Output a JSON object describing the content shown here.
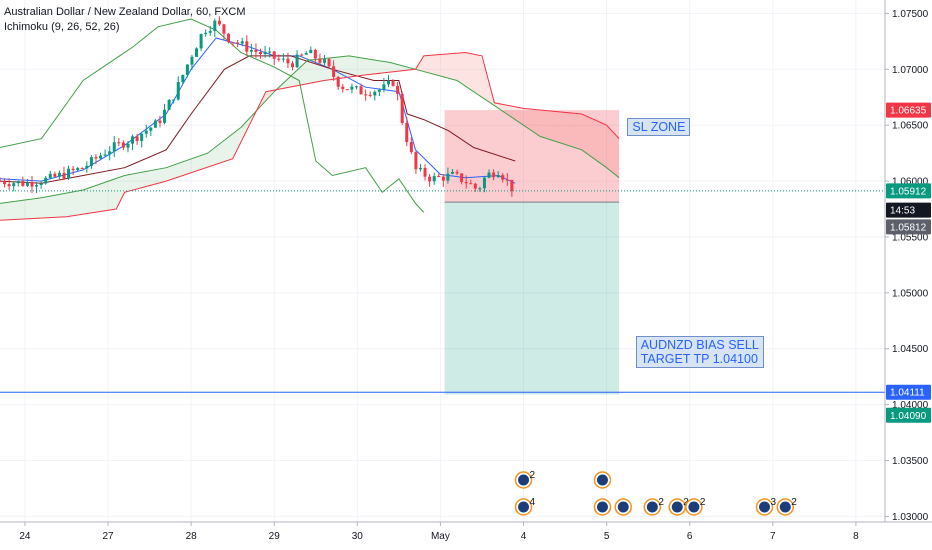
{
  "header": {
    "symbol": "Australian Dollar / New Zealand Dollar, 60, FXCM",
    "indicator": "Ichimoku (9, 26, 52, 26)"
  },
  "chart_data": {
    "type": "candlestick",
    "ylim": [
      1.0295,
      1.0762
    ],
    "y_ticks": [
      "1.07500",
      "1.07000",
      "1.06500",
      "1.06000",
      "1.05500",
      "1.05000",
      "1.04500",
      "1.04000",
      "1.03500",
      "1.03000"
    ],
    "x_ticks": [
      {
        "label": "24",
        "x": 0.3
      },
      {
        "label": "27",
        "x": 1.3
      },
      {
        "label": "28",
        "x": 2.3
      },
      {
        "label": "29",
        "x": 3.3
      },
      {
        "label": "30",
        "x": 4.3
      },
      {
        "label": "May",
        "x": 5.3
      },
      {
        "label": "4",
        "x": 6.3
      },
      {
        "label": "5",
        "x": 7.3
      },
      {
        "label": "6",
        "x": 8.3
      },
      {
        "label": "7",
        "x": 9.3
      },
      {
        "label": "8",
        "x": 10.3
      }
    ],
    "xlim": [
      0,
      10.65
    ],
    "price_tags": [
      {
        "label": "1.06635",
        "value": 1.06635,
        "color": "#f23645"
      },
      {
        "label": "1.05912",
        "value": 1.05912,
        "color": "#089981"
      },
      {
        "label": "14:53",
        "value": 1.0574,
        "color": "#131722"
      },
      {
        "label": "1.05812",
        "value": 1.0559,
        "color": "#5d606b"
      },
      {
        "label": "1.04111",
        "value": 1.04111,
        "color": "#2962ff"
      },
      {
        "label": "1.04090",
        "value": 1.03905,
        "color": "#089981"
      }
    ],
    "horizontal_line": 1.04111,
    "current_price": 1.05912,
    "position": {
      "x_start": 5.35,
      "x_end": 7.45,
      "entry": 1.05812,
      "stop": 1.06635,
      "target": 1.0409
    },
    "annotations": [
      {
        "text": "SL ZONE",
        "x": 7.55,
        "value": 1.0648
      },
      {
        "text": "AUDNZD BIAS SELL",
        "x": 7.65,
        "value": 1.0453
      },
      {
        "text": "TARGET TP 1.04100",
        "x": 7.65,
        "value": 1.0437
      }
    ],
    "close_path": [
      [
        0,
        1.06
      ],
      [
        0.3,
        1.0598
      ],
      [
        0.6,
        1.0602
      ],
      [
        1.0,
        1.0612
      ],
      [
        1.3,
        1.0628
      ],
      [
        1.6,
        1.0638
      ],
      [
        1.9,
        1.0652
      ],
      [
        2.1,
        1.0678
      ],
      [
        2.3,
        1.0712
      ],
      [
        2.45,
        1.0735
      ],
      [
        2.6,
        1.0742
      ],
      [
        2.75,
        1.0728
      ],
      [
        3.0,
        1.0718
      ],
      [
        3.3,
        1.071
      ],
      [
        3.5,
        1.0705
      ],
      [
        3.7,
        1.0715
      ],
      [
        3.9,
        1.0706
      ],
      [
        4.1,
        1.0685
      ],
      [
        4.35,
        1.068
      ],
      [
        4.6,
        1.0682
      ],
      [
        4.75,
        1.069
      ],
      [
        4.85,
        1.065
      ],
      [
        5.0,
        1.061
      ],
      [
        5.2,
        1.0602
      ],
      [
        5.45,
        1.0605
      ],
      [
        5.6,
        1.06
      ],
      [
        5.75,
        1.0592
      ],
      [
        5.85,
        1.0605
      ],
      [
        6.0,
        1.061
      ],
      [
        6.1,
        1.06
      ],
      [
        6.2,
        1.059
      ]
    ],
    "series": [
      {
        "name": "conversion",
        "color": "#2962ff",
        "points": [
          [
            0,
            1.0602
          ],
          [
            0.5,
            1.06
          ],
          [
            1.0,
            1.061
          ],
          [
            1.5,
            1.0632
          ],
          [
            2.0,
            1.066
          ],
          [
            2.3,
            1.07
          ],
          [
            2.6,
            1.0728
          ],
          [
            3.0,
            1.072
          ],
          [
            3.3,
            1.0712
          ],
          [
            3.6,
            1.0712
          ],
          [
            4.0,
            1.07
          ],
          [
            4.4,
            1.0684
          ],
          [
            4.8,
            1.068
          ],
          [
            5.0,
            1.0628
          ],
          [
            5.3,
            1.0606
          ],
          [
            5.6,
            1.0603
          ],
          [
            6.0,
            1.0605
          ],
          [
            6.2,
            1.0598
          ]
        ]
      },
      {
        "name": "base",
        "color": "#801922",
        "points": [
          [
            0,
            1.06
          ],
          [
            0.5,
            1.0598
          ],
          [
            1.0,
            1.0605
          ],
          [
            1.5,
            1.0612
          ],
          [
            2.0,
            1.0628
          ],
          [
            2.3,
            1.066
          ],
          [
            2.7,
            1.07
          ],
          [
            3.0,
            1.0712
          ],
          [
            3.5,
            1.0712
          ],
          [
            4.0,
            1.07
          ],
          [
            4.5,
            1.069
          ],
          [
            4.8,
            1.069
          ],
          [
            4.9,
            1.066
          ],
          [
            5.1,
            1.0655
          ],
          [
            5.4,
            1.0645
          ],
          [
            5.7,
            1.063
          ],
          [
            6.2,
            1.0618
          ]
        ]
      },
      {
        "name": "lagging",
        "color": "#43a047",
        "points": [
          [
            0,
            1.063
          ],
          [
            0.5,
            1.0638
          ],
          [
            1.0,
            1.069
          ],
          [
            1.3,
            1.0705
          ],
          [
            1.6,
            1.072
          ],
          [
            1.9,
            1.0738
          ],
          [
            2.3,
            1.0745
          ],
          [
            2.6,
            1.0735
          ],
          [
            2.9,
            1.0715
          ],
          [
            3.3,
            1.0702
          ],
          [
            3.6,
            1.069
          ],
          [
            3.8,
            1.0618
          ],
          [
            4.0,
            1.0605
          ],
          [
            4.4,
            1.0612
          ],
          [
            4.6,
            1.059
          ],
          [
            4.8,
            1.0602
          ],
          [
            5.0,
            1.058
          ],
          [
            5.1,
            1.0572
          ]
        ]
      },
      {
        "name": "lead_a",
        "color": "#43a047",
        "points": [
          [
            0,
            1.058
          ],
          [
            0.5,
            1.0585
          ],
          [
            1.0,
            1.0592
          ],
          [
            1.5,
            1.0605
          ],
          [
            2.0,
            1.0612
          ],
          [
            2.5,
            1.0625
          ],
          [
            2.9,
            1.0648
          ],
          [
            3.3,
            1.068
          ],
          [
            3.7,
            1.0708
          ],
          [
            4.2,
            1.0712
          ],
          [
            4.7,
            1.0706
          ],
          [
            5.0,
            1.07
          ],
          [
            5.5,
            1.069
          ],
          [
            6.0,
            1.0665
          ],
          [
            6.5,
            1.064
          ],
          [
            7.0,
            1.0628
          ],
          [
            7.3,
            1.0612
          ],
          [
            7.45,
            1.0603
          ]
        ]
      },
      {
        "name": "lead_b",
        "color": "#f23645",
        "points": [
          [
            0,
            1.0565
          ],
          [
            0.8,
            1.0568
          ],
          [
            1.4,
            1.0575
          ],
          [
            1.5,
            1.059
          ],
          [
            2.0,
            1.06
          ],
          [
            2.8,
            1.062
          ],
          [
            3.2,
            1.068
          ],
          [
            3.9,
            1.069
          ],
          [
            4.4,
            1.0695
          ],
          [
            5.0,
            1.07
          ],
          [
            5.1,
            1.0712
          ],
          [
            5.6,
            1.0715
          ],
          [
            5.8,
            1.0712
          ],
          [
            5.95,
            1.067
          ],
          [
            6.3,
            1.0665
          ],
          [
            7.0,
            1.066
          ],
          [
            7.3,
            1.065
          ],
          [
            7.45,
            1.0638
          ]
        ]
      }
    ],
    "event_markers": [
      {
        "x": 6.3,
        "row": 1,
        "count": "2"
      },
      {
        "x": 6.3,
        "row": 2,
        "count": "4"
      },
      {
        "x": 7.25,
        "row": 1,
        "count": ""
      },
      {
        "x": 7.25,
        "row": 2,
        "count": ""
      },
      {
        "x": 7.5,
        "row": 2,
        "count": ""
      },
      {
        "x": 7.85,
        "row": 2,
        "count": "2"
      },
      {
        "x": 8.15,
        "row": 2,
        "count": "2"
      },
      {
        "x": 8.35,
        "row": 2,
        "count": "2"
      },
      {
        "x": 9.2,
        "row": 2,
        "count": "3"
      },
      {
        "x": 9.45,
        "row": 2,
        "count": "2"
      }
    ]
  }
}
